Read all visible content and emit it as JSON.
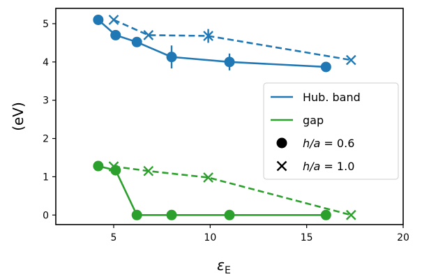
{
  "chart_data": {
    "type": "line",
    "xlabel": "ε",
    "xlabel_sub": "E",
    "ylabel": "(eV)",
    "xlim": [
      2,
      20
    ],
    "ylim": [
      -0.25,
      5.4
    ],
    "xticks": [
      5,
      10,
      15,
      20
    ],
    "yticks": [
      0,
      1,
      2,
      3,
      4,
      5
    ],
    "grid": false,
    "legend_position": "center-right",
    "colors": {
      "hub": "#1f77b4",
      "gap": "#2ca02c"
    },
    "series": [
      {
        "id": "hub-h06",
        "color": "#1f77b4",
        "marker": "circle",
        "linestyle": "solid",
        "points": [
          {
            "x": 4.2,
            "y": 5.1,
            "err": 0
          },
          {
            "x": 5.1,
            "y": 4.7,
            "err": 0
          },
          {
            "x": 6.2,
            "y": 4.52,
            "err": 0
          },
          {
            "x": 8.0,
            "y": 4.13,
            "err": 0.3
          },
          {
            "x": 11.0,
            "y": 4.0,
            "err": 0.22
          },
          {
            "x": 16.0,
            "y": 3.87,
            "err": 0
          }
        ]
      },
      {
        "id": "hub-h10",
        "color": "#1f77b4",
        "marker": "x",
        "linestyle": "dashed",
        "points": [
          {
            "x": 5.0,
            "y": 5.1,
            "err": 0
          },
          {
            "x": 6.8,
            "y": 4.7,
            "err": 0
          },
          {
            "x": 9.9,
            "y": 4.68,
            "err": 0.18
          },
          {
            "x": 17.3,
            "y": 4.05,
            "err": 0
          }
        ]
      },
      {
        "id": "gap-h06",
        "color": "#2ca02c",
        "marker": "circle",
        "linestyle": "solid",
        "points": [
          {
            "x": 4.2,
            "y": 1.28,
            "err": 0
          },
          {
            "x": 5.1,
            "y": 1.17,
            "err": 0
          },
          {
            "x": 6.2,
            "y": 0.0,
            "err": 0
          },
          {
            "x": 8.0,
            "y": 0.0,
            "err": 0
          },
          {
            "x": 11.0,
            "y": 0.0,
            "err": 0
          },
          {
            "x": 16.0,
            "y": 0.0,
            "err": 0
          }
        ]
      },
      {
        "id": "gap-h10",
        "color": "#2ca02c",
        "marker": "x",
        "linestyle": "dashed",
        "points": [
          {
            "x": 5.0,
            "y": 1.27,
            "err": 0
          },
          {
            "x": 6.8,
            "y": 1.15,
            "err": 0
          },
          {
            "x": 9.9,
            "y": 0.98,
            "err": 0
          },
          {
            "x": 17.3,
            "y": 0.0,
            "err": 0
          }
        ]
      }
    ],
    "legend": [
      {
        "kind": "line",
        "color": "#1f77b4",
        "label": "Hub. band"
      },
      {
        "kind": "line",
        "color": "#2ca02c",
        "label": "gap"
      },
      {
        "kind": "circle",
        "color": "#000000",
        "label_var": "h/a",
        "label_rest": " = 0.6"
      },
      {
        "kind": "x",
        "color": "#000000",
        "label_var": "h/a",
        "label_rest": " = 1.0"
      }
    ]
  }
}
